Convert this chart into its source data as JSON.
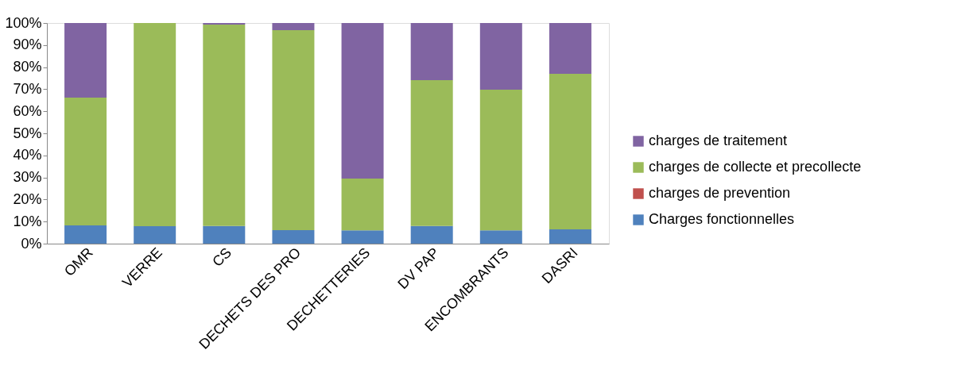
{
  "chart_data": {
    "type": "bar",
    "stacked": true,
    "categories": [
      "OMR",
      "VERRE",
      "CS",
      "DECHETS DES PRO",
      "DECHETTERIES",
      "DV PAP",
      "ENCOMBRANTS",
      "DASRI"
    ],
    "series": [
      {
        "name": "Charges fonctionnelles",
        "color": "#4f81bd",
        "values": [
          8.3,
          7.9,
          8,
          6.1,
          6,
          8,
          6,
          6.5
        ]
      },
      {
        "name": "charges de prevention",
        "color": "#c0504d",
        "values": [
          0,
          0,
          0,
          0,
          0,
          0,
          0,
          0
        ]
      },
      {
        "name": "charges de collecte et precollecte",
        "color": "#9bbb59",
        "values": [
          57.9,
          92.1,
          91.3,
          90.7,
          23.5,
          66.1,
          63.8,
          70.5
        ]
      },
      {
        "name": "charges de traitement",
        "color": "#8064a2",
        "values": [
          33.8,
          0,
          0.7,
          3.2,
          70.5,
          25.9,
          30.2,
          23
        ]
      }
    ],
    "ylim": [
      0,
      100
    ],
    "yticks": [
      {
        "value": 0,
        "label": "0%"
      },
      {
        "value": 10,
        "label": "10%"
      },
      {
        "value": 20,
        "label": "20%"
      },
      {
        "value": 30,
        "label": "30%"
      },
      {
        "value": 40,
        "label": "40%"
      },
      {
        "value": 50,
        "label": "50%"
      },
      {
        "value": 60,
        "label": "60%"
      },
      {
        "value": 70,
        "label": "70%"
      },
      {
        "value": 80,
        "label": "80%"
      },
      {
        "value": 90,
        "label": "90%"
      },
      {
        "value": 100,
        "label": "100%"
      }
    ],
    "grid": false,
    "legend": "right"
  }
}
